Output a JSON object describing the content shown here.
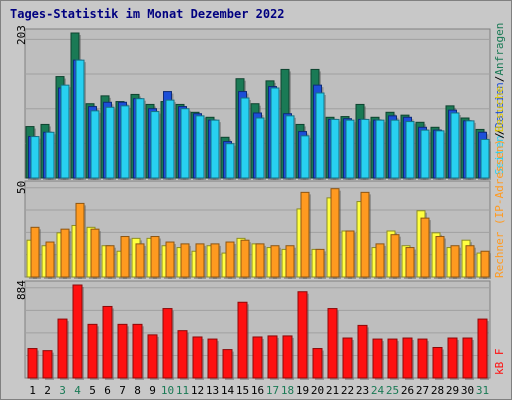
{
  "title": "Tages-Statistik im Monat Dezember 2022",
  "colors": {
    "background": "#c8c8c8",
    "plot_bg": "#bebebe",
    "gridline": "#a0a0a0",
    "anfragen": "#1a7a55",
    "dateien": "#1c4fd8",
    "seiten": "#28d0f0",
    "besuche": "#ffff40",
    "rechner": "#ff9a20",
    "kb": "#ff1010",
    "weekend_label": "#1a7a55",
    "title": "#000080"
  },
  "legend": {
    "upper": [
      {
        "text": "Anfragen",
        "color": "#1a7a55"
      },
      {
        "text": "Dateien",
        "color": "#1c4fd8"
      },
      {
        "text": "Seiten",
        "color": "#28d0f0"
      }
    ],
    "upper_separator": "/",
    "lower": [
      {
        "text": "Rechner (IP-Adressen)",
        "color": "#ff9a20"
      },
      {
        "text": "Besuche",
        "color": "#f0e000"
      }
    ],
    "lower_separator": "/",
    "kb_label": "kB F"
  },
  "chart_data": [
    {
      "type": "bar",
      "ymax_label": "203",
      "ylim": [
        0,
        203
      ],
      "categories": [
        "1",
        "2",
        "3",
        "4",
        "5",
        "6",
        "7",
        "8",
        "9",
        "10",
        "11",
        "12",
        "13",
        "14",
        "15",
        "16",
        "17",
        "18",
        "19",
        "20",
        "21",
        "22",
        "23",
        "24",
        "25",
        "26",
        "27",
        "28",
        "29",
        "30",
        "31"
      ],
      "weekend_days": [
        "3",
        "4",
        "10",
        "11",
        "17",
        "18",
        "24",
        "25",
        "31"
      ],
      "series": [
        {
          "name": "Anfragen",
          "values": [
            72,
            75,
            142,
            203,
            104,
            115,
            107,
            117,
            103,
            107,
            103,
            92,
            85,
            57,
            139,
            104,
            136,
            152,
            75,
            152,
            85,
            86,
            103,
            85,
            92,
            88,
            78,
            71,
            101,
            84,
            68
          ]
        },
        {
          "name": "Dateien",
          "values": [
            58,
            64,
            126,
            165,
            100,
            106,
            106,
            111,
            97,
            121,
            100,
            90,
            81,
            51,
            121,
            91,
            128,
            90,
            65,
            130,
            82,
            83,
            82,
            81,
            87,
            85,
            71,
            67,
            95,
            80,
            64
          ]
        },
        {
          "name": "Seiten",
          "values": [
            58,
            64,
            130,
            165,
            94,
            99,
            101,
            111,
            93,
            109,
            97,
            87,
            81,
            48,
            112,
            84,
            126,
            87,
            59,
            119,
            82,
            81,
            82,
            81,
            81,
            79,
            67,
            66,
            91,
            80,
            54
          ]
        }
      ]
    },
    {
      "type": "bar",
      "ymax_label": "50",
      "ylim": [
        0,
        50
      ],
      "series": [
        {
          "name": "Besuche",
          "values": [
            20,
            17,
            24,
            28,
            27,
            17,
            14,
            21,
            21,
            17,
            16,
            14,
            17,
            13,
            21,
            18,
            16,
            15,
            37,
            15,
            43,
            25,
            41,
            16,
            25,
            17,
            36,
            24,
            16,
            20,
            13
          ]
        },
        {
          "name": "Rechner (IP-Adressen)",
          "values": [
            27,
            19,
            26,
            40,
            26,
            17,
            22,
            18,
            22,
            19,
            18,
            18,
            18,
            19,
            20,
            18,
            17,
            17,
            46,
            15,
            48,
            25,
            46,
            18,
            23,
            16,
            32,
            22,
            17,
            17,
            14
          ]
        }
      ]
    },
    {
      "type": "bar",
      "ymax_label": "884",
      "ylim": [
        0,
        884
      ],
      "series": [
        {
          "name": "kB F",
          "values": [
            280,
            260,
            560,
            884,
            510,
            680,
            510,
            510,
            410,
            660,
            450,
            390,
            370,
            270,
            720,
            390,
            400,
            400,
            820,
            280,
            660,
            380,
            500,
            370,
            370,
            380,
            370,
            290,
            380,
            380,
            560
          ]
        }
      ]
    }
  ]
}
